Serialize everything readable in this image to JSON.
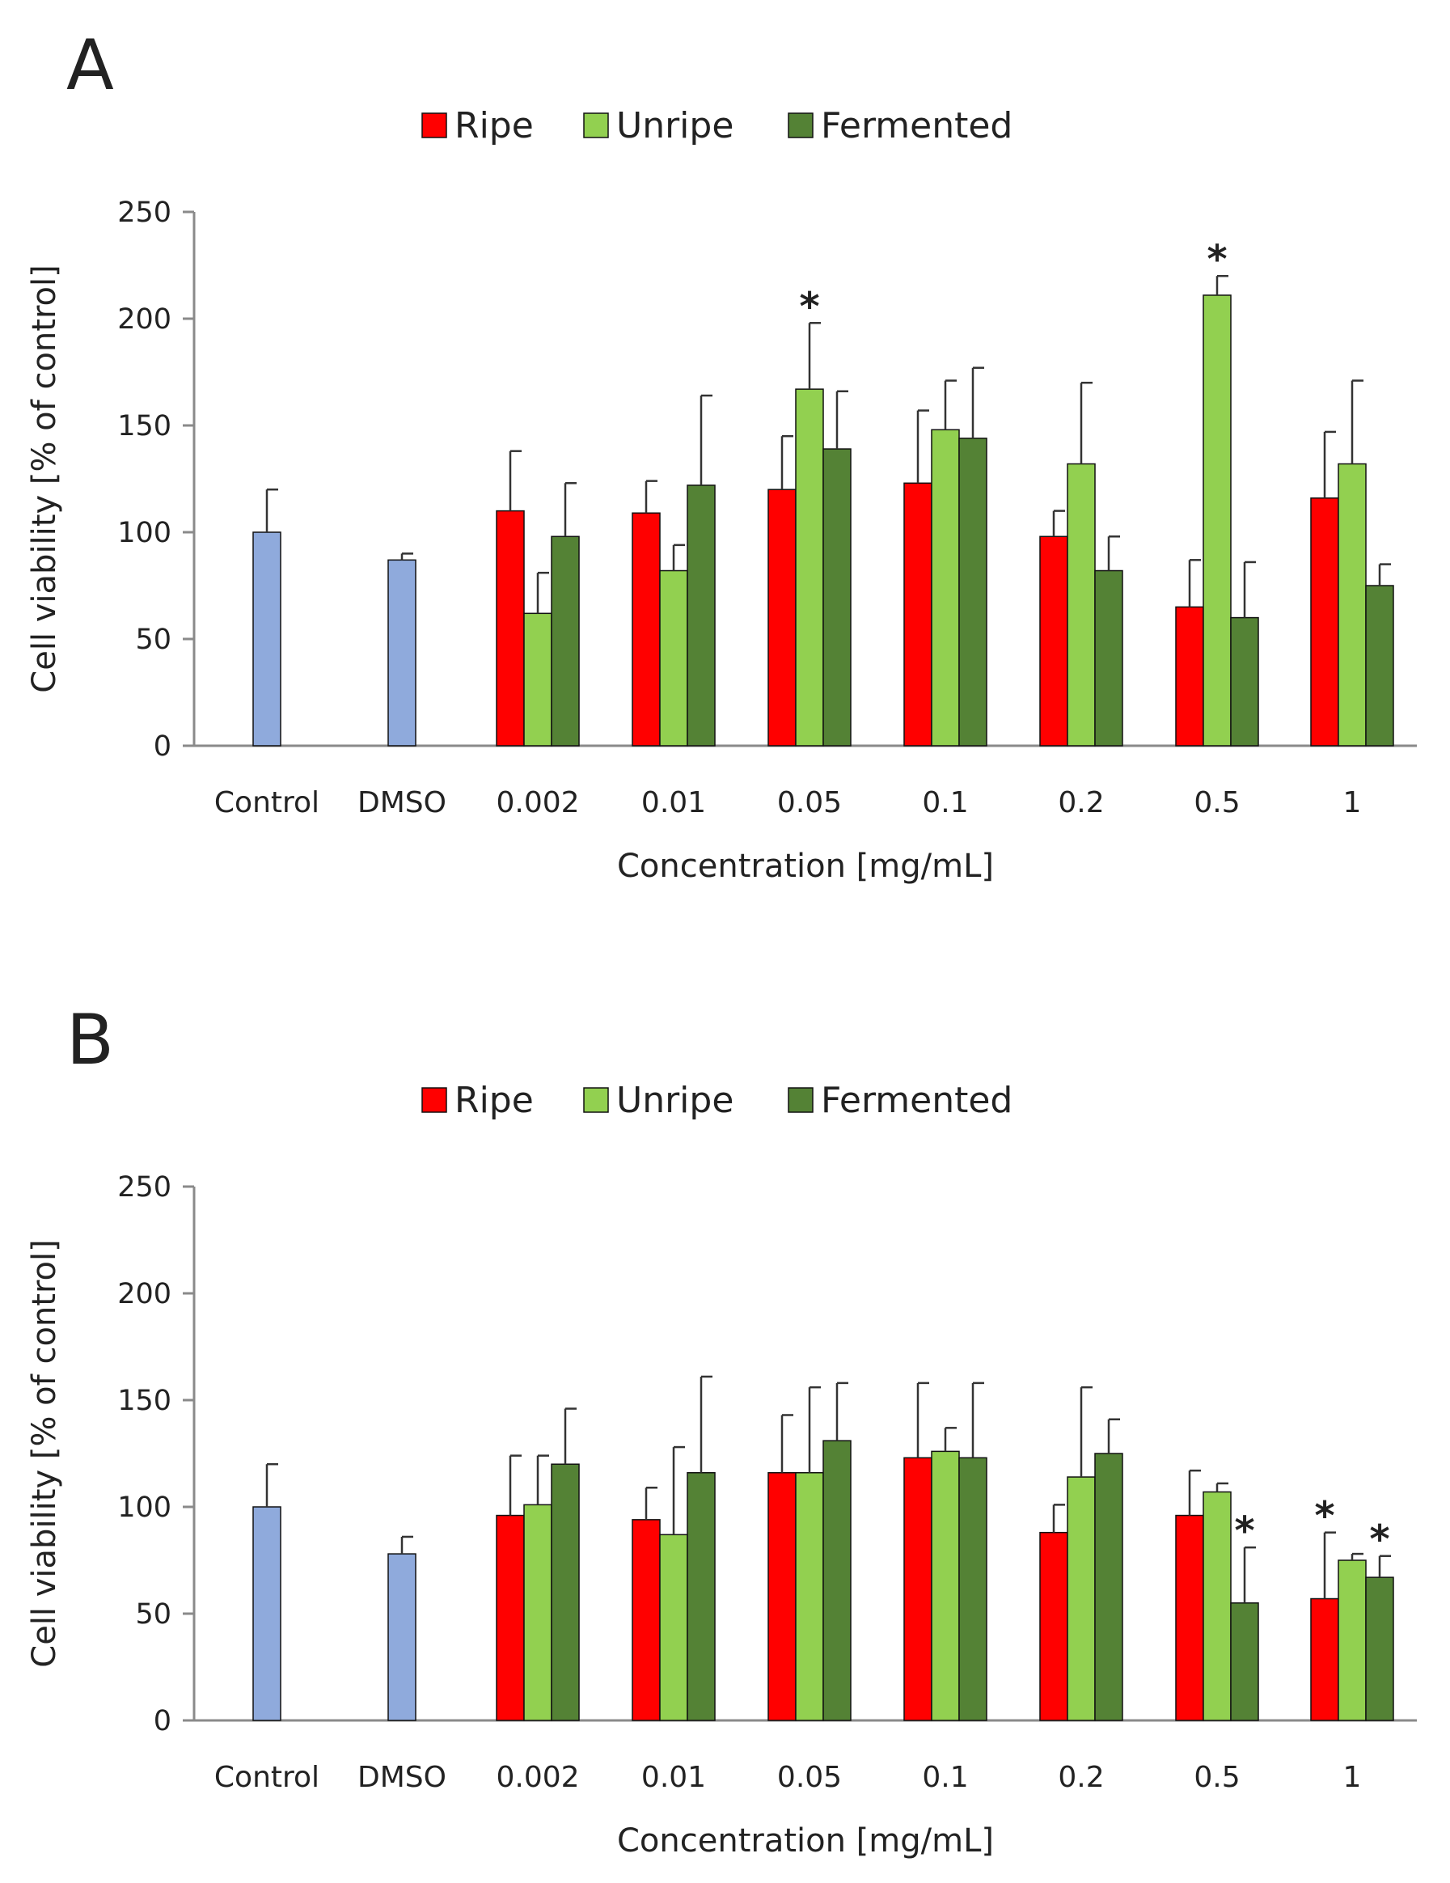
{
  "colors": {
    "control": "#8faadc",
    "Ripe": "#ff0000",
    "Unripe": "#92d050",
    "Fermented": "#548235"
  },
  "chart_data": [
    {
      "panel": "A",
      "type": "bar",
      "xlabel": "Concentration [mg/mL]",
      "ylabel": "Cell viability [% of control]",
      "ylim": [
        0,
        250
      ],
      "yticks": [
        0,
        50,
        100,
        150,
        200,
        250
      ],
      "legend": [
        "Ripe",
        "Unripe",
        "Fermented"
      ],
      "legend_position": "top-center",
      "controls": [
        {
          "category": "Control",
          "value": 100,
          "error": 20
        },
        {
          "category": "DMSO",
          "value": 87,
          "error": 3
        }
      ],
      "categories": [
        "0.002",
        "0.01",
        "0.05",
        "0.1",
        "0.2",
        "0.5",
        "1"
      ],
      "series": [
        {
          "name": "Ripe",
          "values": [
            110,
            109,
            120,
            123,
            98,
            65,
            116
          ],
          "errors": [
            28,
            15,
            25,
            34,
            12,
            22,
            31
          ]
        },
        {
          "name": "Unripe",
          "values": [
            62,
            82,
            167,
            148,
            132,
            211,
            132
          ],
          "errors": [
            19,
            12,
            31,
            23,
            38,
            9,
            39
          ]
        },
        {
          "name": "Fermented",
          "values": [
            98,
            122,
            139,
            144,
            82,
            60,
            75
          ],
          "errors": [
            25,
            42,
            27,
            33,
            16,
            26,
            10
          ]
        }
      ],
      "significance": [
        {
          "category": "0.05",
          "series": "Unripe",
          "label": "*"
        },
        {
          "category": "0.5",
          "series": "Unripe",
          "label": "*"
        }
      ]
    },
    {
      "panel": "B",
      "type": "bar",
      "xlabel": "Concentration [mg/mL]",
      "ylabel": "Cell viability [% of control]",
      "ylim": [
        0,
        250
      ],
      "yticks": [
        0,
        50,
        100,
        150,
        200,
        250
      ],
      "legend": [
        "Ripe",
        "Unripe",
        "Fermented"
      ],
      "legend_position": "top-center",
      "controls": [
        {
          "category": "Control",
          "value": 100,
          "error": 20
        },
        {
          "category": "DMSO",
          "value": 78,
          "error": 8
        }
      ],
      "categories": [
        "0.002",
        "0.01",
        "0.05",
        "0.1",
        "0.2",
        "0.5",
        "1"
      ],
      "series": [
        {
          "name": "Ripe",
          "values": [
            96,
            94,
            116,
            123,
            88,
            96,
            57
          ],
          "errors": [
            28,
            15,
            27,
            35,
            13,
            21,
            31
          ]
        },
        {
          "name": "Unripe",
          "values": [
            101,
            87,
            116,
            126,
            114,
            107,
            75
          ],
          "errors": [
            23,
            41,
            40,
            11,
            42,
            4,
            3
          ]
        },
        {
          "name": "Fermented",
          "values": [
            120,
            116,
            131,
            123,
            125,
            55,
            67
          ],
          "errors": [
            26,
            45,
            27,
            35,
            16,
            26,
            10
          ]
        }
      ],
      "significance": [
        {
          "category": "0.5",
          "series": "Fermented",
          "label": "*"
        },
        {
          "category": "1",
          "series": "Ripe",
          "label": "*"
        },
        {
          "category": "1",
          "series": "Fermented",
          "label": "*"
        }
      ]
    }
  ]
}
